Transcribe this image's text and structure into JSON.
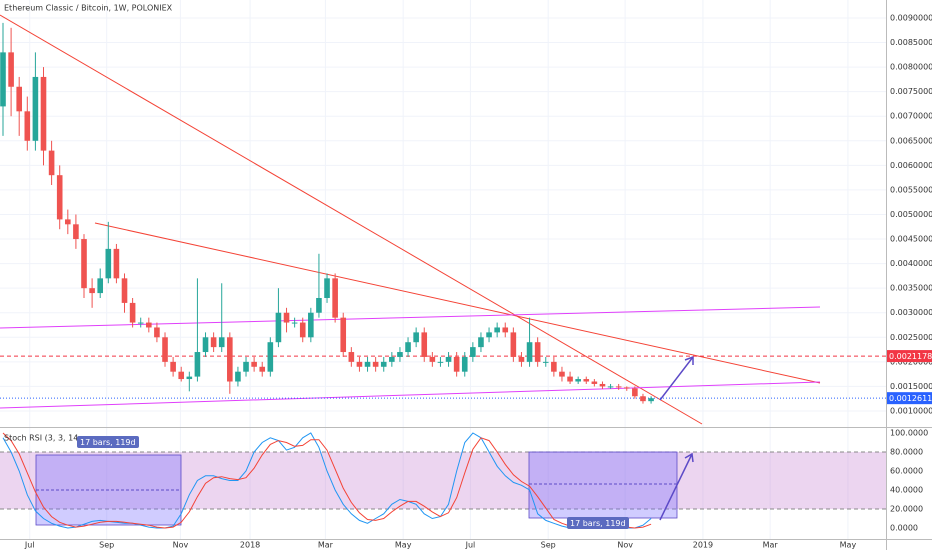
{
  "chart_data": [
    {
      "type": "candlestick",
      "title": "Ethereum Classic / Bitcoin, 1W, POLONIEX",
      "x": [
        0,
        1,
        2,
        3,
        4,
        5,
        6,
        7,
        8,
        9,
        10,
        11,
        12,
        13,
        14,
        15,
        16,
        17,
        18,
        19,
        20,
        21,
        22,
        23,
        24,
        25,
        26,
        27,
        28,
        29,
        30,
        31,
        32,
        33,
        34,
        35,
        36,
        37,
        38,
        39,
        40,
        41,
        42,
        43,
        44,
        45,
        46,
        47,
        48,
        49,
        50,
        51,
        52,
        53,
        54,
        55,
        56,
        57,
        58,
        59,
        60,
        61,
        62,
        63,
        64,
        65,
        66,
        67,
        68,
        69,
        70,
        71,
        72,
        73,
        74,
        75,
        76,
        77,
        78,
        79,
        80
      ],
      "open": [
        0.0072,
        0.0083,
        0.0076,
        0.0071,
        0.0065,
        0.0078,
        0.0063,
        0.0058,
        0.0049,
        0.0048,
        0.0045,
        0.0035,
        0.0034,
        0.0037,
        0.0043,
        0.0037,
        0.0032,
        0.0028,
        0.0028,
        0.0027,
        0.0025,
        0.002,
        0.0018,
        0.00165,
        0.0017,
        0.0022,
        0.0025,
        0.0023,
        0.0025,
        0.0016,
        0.0018,
        0.002,
        0.0019,
        0.0018,
        0.0024,
        0.003,
        0.0028,
        0.0028,
        0.0025,
        0.003,
        0.0033,
        0.0037,
        0.0029,
        0.0022,
        0.002,
        0.0019,
        0.002,
        0.0019,
        0.002,
        0.0021,
        0.0022,
        0.0024,
        0.0026,
        0.0021,
        0.002,
        0.002,
        0.0021,
        0.0018,
        0.0021,
        0.0023,
        0.0025,
        0.0026,
        0.0027,
        0.0026,
        0.0021,
        0.002,
        0.0024,
        0.002,
        0.002,
        0.0018,
        0.0017,
        0.0016,
        0.00165,
        0.0016,
        0.00155,
        0.0015,
        0.0015,
        0.00148,
        0.00146,
        0.0013,
        0.0012
      ],
      "high": [
        0.0089,
        0.0088,
        0.0078,
        0.0074,
        0.0083,
        0.008,
        0.0065,
        0.006,
        0.0051,
        0.005,
        0.0046,
        0.0037,
        0.0039,
        0.00485,
        0.0044,
        0.0038,
        0.0033,
        0.0029,
        0.0029,
        0.0028,
        0.0026,
        0.0021,
        0.0019,
        0.0018,
        0.0037,
        0.0026,
        0.0026,
        0.0036,
        0.0026,
        0.0019,
        0.0021,
        0.0021,
        0.002,
        0.0025,
        0.0035,
        0.0031,
        0.0029,
        0.0029,
        0.0031,
        0.0042,
        0.0038,
        0.0038,
        0.003,
        0.0023,
        0.0021,
        0.0021,
        0.0021,
        0.0021,
        0.0022,
        0.0023,
        0.0025,
        0.0027,
        0.0027,
        0.0022,
        0.0021,
        0.0022,
        0.0022,
        0.0022,
        0.0024,
        0.0026,
        0.0027,
        0.0028,
        0.0028,
        0.0027,
        0.0022,
        0.0029,
        0.0025,
        0.0021,
        0.0021,
        0.0019,
        0.0018,
        0.0017,
        0.0017,
        0.00165,
        0.0016,
        0.00155,
        0.00155,
        0.0015,
        0.0015,
        0.00135,
        0.0013
      ],
      "low": [
        0.0066,
        0.007,
        0.0066,
        0.0063,
        0.0063,
        0.006,
        0.0056,
        0.0047,
        0.0046,
        0.0043,
        0.0033,
        0.0031,
        0.0033,
        0.0036,
        0.0036,
        0.003,
        0.0027,
        0.0027,
        0.0026,
        0.0024,
        0.0019,
        0.0017,
        0.0016,
        0.0014,
        0.0016,
        0.0021,
        0.0022,
        0.0022,
        0.00135,
        0.0015,
        0.0017,
        0.0018,
        0.0017,
        0.0017,
        0.0023,
        0.0026,
        0.0027,
        0.0024,
        0.0024,
        0.0029,
        0.0032,
        0.0028,
        0.0021,
        0.0019,
        0.0018,
        0.0018,
        0.0018,
        0.0018,
        0.0019,
        0.002,
        0.0021,
        0.0023,
        0.002,
        0.0019,
        0.0019,
        0.0019,
        0.0017,
        0.0017,
        0.002,
        0.0022,
        0.0024,
        0.0025,
        0.0025,
        0.002,
        0.0019,
        0.0019,
        0.0019,
        0.0019,
        0.0017,
        0.0016,
        0.00155,
        0.00155,
        0.00155,
        0.0015,
        0.00145,
        0.00145,
        0.00143,
        0.00141,
        0.00125,
        0.00115,
        0.00115
      ],
      "close": [
        0.0083,
        0.0076,
        0.0071,
        0.0065,
        0.0078,
        0.0063,
        0.0058,
        0.0049,
        0.0048,
        0.0045,
        0.0035,
        0.0034,
        0.0037,
        0.0043,
        0.0037,
        0.0032,
        0.0028,
        0.0028,
        0.0027,
        0.0025,
        0.002,
        0.0018,
        0.00165,
        0.0017,
        0.0022,
        0.0025,
        0.0023,
        0.0025,
        0.0016,
        0.0018,
        0.002,
        0.0019,
        0.0018,
        0.0024,
        0.003,
        0.0028,
        0.0028,
        0.0025,
        0.003,
        0.0033,
        0.0037,
        0.0029,
        0.0022,
        0.002,
        0.0019,
        0.002,
        0.0019,
        0.002,
        0.0021,
        0.0022,
        0.0024,
        0.0026,
        0.0021,
        0.002,
        0.002,
        0.0021,
        0.0018,
        0.0021,
        0.0023,
        0.0025,
        0.0026,
        0.0027,
        0.0026,
        0.0021,
        0.002,
        0.0024,
        0.002,
        0.002,
        0.0018,
        0.0017,
        0.0016,
        0.00165,
        0.0016,
        0.00155,
        0.0015,
        0.0015,
        0.00148,
        0.00146,
        0.0013,
        0.0012,
        0.00126
      ],
      "up_color": "#26a69a",
      "down_color": "#ef5350",
      "xlim": [
        -0.37,
        109
      ],
      "xticks": [
        {
          "value": 3.3,
          "label": "Jul"
        },
        {
          "value": 12.8,
          "label": "Sep"
        },
        {
          "value": 21.9,
          "label": "Nov"
        },
        {
          "value": 30.5,
          "label": "2018"
        },
        {
          "value": 39.8,
          "label": "Mar"
        },
        {
          "value": 49.4,
          "label": "May"
        },
        {
          "value": 57.7,
          "label": "Jul"
        },
        {
          "value": 67.3,
          "label": "Sep"
        },
        {
          "value": 76.8,
          "label": "Nov"
        },
        {
          "value": 86.4,
          "label": "2019"
        },
        {
          "value": 94.7,
          "label": "Mar"
        },
        {
          "value": 104.3,
          "label": "May"
        }
      ],
      "ylim": [
        0.000674,
        0.009366
      ],
      "yticks": [
        {
          "value": 0.001,
          "label": "0.00100000"
        },
        {
          "value": 0.0015,
          "label": "0.00150000"
        },
        {
          "value": 0.002,
          "label": "0.00200000"
        },
        {
          "value": 0.0025,
          "label": "0.00250000"
        },
        {
          "value": 0.003,
          "label": "0.00300000"
        },
        {
          "value": 0.0035,
          "label": "0.00350000"
        },
        {
          "value": 0.004,
          "label": "0.00400000"
        },
        {
          "value": 0.0045,
          "label": "0.00450000"
        },
        {
          "value": 0.005,
          "label": "0.00500000"
        },
        {
          "value": 0.0055,
          "label": "0.00550000"
        },
        {
          "value": 0.006,
          "label": "0.00600000"
        },
        {
          "value": 0.0065,
          "label": "0.00650000"
        },
        {
          "value": 0.007,
          "label": "0.00700000"
        },
        {
          "value": 0.0075,
          "label": "0.00750000"
        },
        {
          "value": 0.008,
          "label": "0.00800000"
        },
        {
          "value": 0.0085,
          "label": "0.00850000"
        },
        {
          "value": 0.009,
          "label": "0.00900000"
        }
      ],
      "grid": true,
      "price_lines": [
        {
          "value": 0.00211783,
          "color": "#f23645"
        },
        {
          "value": 0.00126111,
          "color": "#2962ff"
        }
      ]
    },
    {
      "type": "line",
      "title": "Stoch RSI (3, 3, 14,",
      "x": [
        0,
        1,
        2,
        3,
        4,
        5,
        6,
        7,
        8,
        9,
        10,
        11,
        12,
        13,
        14,
        15,
        16,
        17,
        18,
        19,
        20,
        21,
        22,
        23,
        24,
        25,
        26,
        27,
        28,
        29,
        30,
        31,
        32,
        33,
        34,
        35,
        36,
        37,
        38,
        39,
        40,
        41,
        42,
        43,
        44,
        45,
        46,
        47,
        48,
        49,
        50,
        51,
        52,
        53,
        54,
        55,
        56,
        57,
        58,
        59,
        60,
        61,
        62,
        63,
        64,
        65,
        66,
        67,
        68,
        69,
        70,
        71,
        72,
        73,
        74,
        75,
        76,
        77,
        78,
        79,
        80
      ],
      "series": [
        {
          "color": "#2196f3",
          "values": [
            95,
            80,
            60,
            35,
            18,
            10,
            5,
            2,
            0,
            1,
            4,
            7,
            8,
            7,
            6,
            5,
            5,
            3,
            1,
            0,
            0,
            2,
            15,
            35,
            50,
            55,
            55,
            52,
            50,
            50,
            60,
            80,
            90,
            95,
            92,
            82,
            85,
            95,
            100,
            85,
            60,
            40,
            25,
            15,
            8,
            5,
            10,
            15,
            25,
            30,
            28,
            25,
            15,
            10,
            12,
            25,
            60,
            90,
            100,
            95,
            80,
            65,
            55,
            48,
            45,
            40,
            15,
            8,
            5,
            2,
            0,
            0,
            1,
            0,
            0,
            2,
            0,
            0,
            0,
            3,
            10
          ]
        },
        {
          "color": "#f44336",
          "values": [
            100,
            92,
            78,
            58,
            38,
            22,
            12,
            6,
            3,
            1,
            2,
            4,
            6,
            7,
            7,
            6,
            5,
            4,
            3,
            1,
            0,
            1,
            6,
            17,
            33,
            47,
            53,
            54,
            52,
            51,
            53,
            63,
            77,
            88,
            92,
            90,
            86,
            87,
            93,
            93,
            82,
            62,
            42,
            27,
            16,
            9,
            8,
            10,
            17,
            23,
            28,
            28,
            23,
            17,
            12,
            16,
            32,
            58,
            83,
            95,
            92,
            80,
            67,
            56,
            49,
            44,
            33,
            21,
            9,
            5,
            2,
            1,
            0,
            0,
            0,
            1,
            1,
            1,
            0,
            1,
            4
          ]
        }
      ],
      "xlim": [
        -0.37,
        109
      ],
      "ylim": [
        -10.5,
        105.3
      ],
      "yticks": [
        {
          "value": 0,
          "label": "0.0000"
        },
        {
          "value": 20,
          "label": "20.0000"
        },
        {
          "value": 40,
          "label": "40.0000"
        },
        {
          "value": 60,
          "label": "60.0000"
        },
        {
          "value": 80,
          "label": "80.0000"
        },
        {
          "value": 100,
          "label": "100.0000"
        }
      ],
      "band": [
        20,
        80
      ],
      "annotations": [
        {
          "text": "17 bars, 119d"
        },
        {
          "text": "17 bars, 119d"
        }
      ]
    }
  ]
}
